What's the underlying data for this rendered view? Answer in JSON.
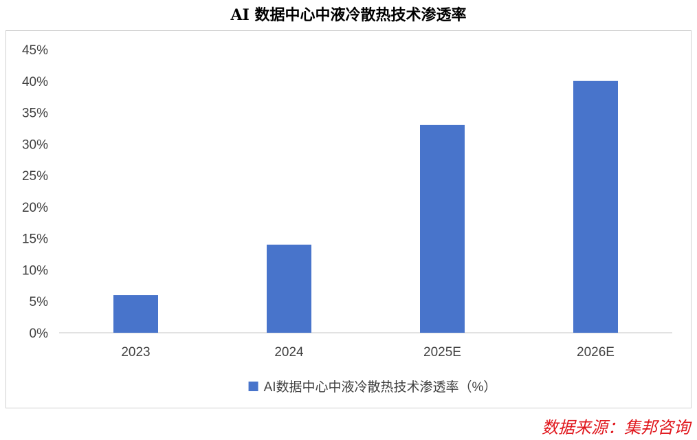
{
  "title": "AI 数据中心中液冷散热技术渗透率",
  "source": "数据来源：集邦咨询",
  "colors": {
    "bar": "#4874cb",
    "axis": "#d9d9d9",
    "text": "#404040",
    "source": "#e0161c"
  },
  "chart_data": {
    "type": "bar",
    "title": "AI 数据中心中液冷散热技术渗透率",
    "categories": [
      "2023",
      "2024",
      "2025E",
      "2026E"
    ],
    "series": [
      {
        "name": "AI数据中心中液冷散热技术渗透率（%）",
        "values": [
          6,
          14,
          33,
          40
        ]
      }
    ],
    "ylim": [
      0,
      45
    ],
    "yticks": [
      0,
      5,
      10,
      15,
      20,
      25,
      30,
      35,
      40,
      45
    ],
    "ytick_format": "percent",
    "grid": false,
    "legend": "bottom-center",
    "xlabel": "",
    "ylabel": ""
  }
}
